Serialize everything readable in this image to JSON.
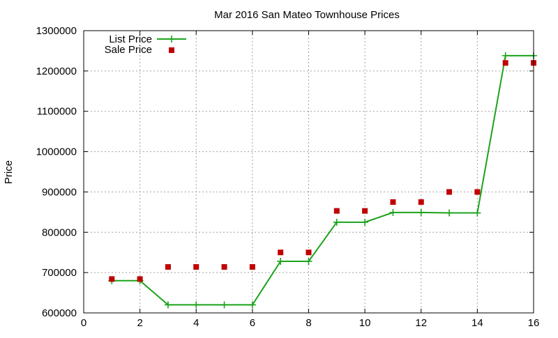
{
  "chart_data": {
    "type": "line",
    "title": "Mar 2016 San Mateo Townhouse Prices",
    "xlabel": "",
    "ylabel": "Price",
    "xlim": [
      0,
      16
    ],
    "ylim": [
      600000,
      1300000
    ],
    "x_ticks": [
      0,
      2,
      4,
      6,
      8,
      10,
      12,
      14,
      16
    ],
    "y_ticks": [
      600000,
      700000,
      800000,
      900000,
      1000000,
      1100000,
      1200000,
      1300000
    ],
    "grid": true,
    "legend_position": "top-left",
    "series": [
      {
        "name": "List Price",
        "style": "line-with-plus-markers",
        "color": "#1aa31a",
        "x": [
          1,
          2,
          3,
          4,
          5,
          6,
          7,
          8,
          9,
          10,
          11,
          12,
          13,
          14,
          15,
          16
        ],
        "values": [
          680000,
          680000,
          620000,
          620000,
          620000,
          620000,
          728000,
          728000,
          825000,
          825000,
          849000,
          849000,
          848000,
          848000,
          1238000,
          1238000
        ]
      },
      {
        "name": "Sale Price",
        "style": "square-markers",
        "color": "#c00000",
        "x": [
          1,
          2,
          3,
          4,
          5,
          6,
          7,
          8,
          9,
          10,
          11,
          12,
          13,
          14,
          15,
          16
        ],
        "values": [
          684000,
          684000,
          714000,
          714000,
          714000,
          714000,
          750000,
          750000,
          853000,
          853000,
          875000,
          875000,
          900000,
          900000,
          1220000,
          1220000
        ]
      }
    ]
  }
}
